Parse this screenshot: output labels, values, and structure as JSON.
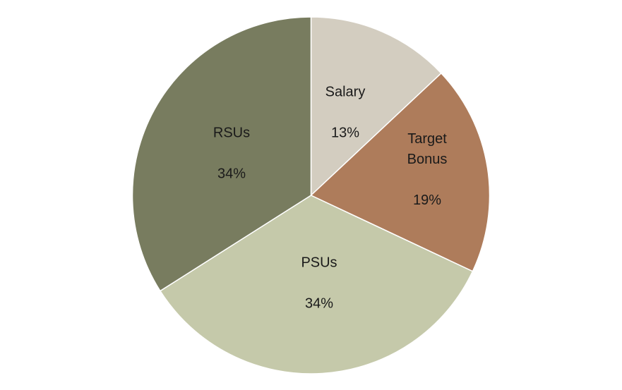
{
  "chart_data": {
    "type": "pie",
    "title": "",
    "categories": [
      "Salary",
      "Target Bonus",
      "PSUs",
      "RSUs"
    ],
    "values": [
      13,
      19,
      34,
      34
    ],
    "unit": "%",
    "colors": [
      "#d3cdc0",
      "#ae7c5b",
      "#c5c9aa",
      "#787c5f"
    ],
    "start_angle_deg": 0,
    "direction": "clockwise",
    "legend": "none",
    "data_labels": "category and percentage inside slices"
  },
  "labels": {
    "salary": {
      "name": "Salary",
      "pct": "13%"
    },
    "bonus": {
      "name": "Target\nBonus",
      "pct": "19%"
    },
    "psus": {
      "name": "PSUs",
      "pct": "34%"
    },
    "rsus": {
      "name": "RSUs",
      "pct": "34%"
    }
  }
}
